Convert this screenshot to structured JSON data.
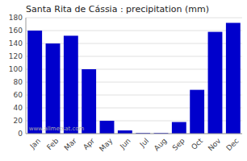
{
  "chart_data": {
    "type": "bar",
    "title": "Santa Rita de Cássia : precipitation (mm)",
    "categories": [
      "Jan",
      "Feb",
      "Mar",
      "Apr",
      "May",
      "Jun",
      "Jul",
      "Aug",
      "Sep",
      "Oct",
      "Nov",
      "Dec"
    ],
    "values": [
      160,
      140,
      152,
      100,
      20,
      5,
      1,
      1,
      18,
      68,
      158,
      172
    ],
    "color": "#0000cc",
    "ylim": [
      0,
      180
    ],
    "yticks": [
      0,
      20,
      40,
      60,
      80,
      100,
      120,
      140,
      160,
      180
    ],
    "grid": true,
    "annotations": [
      "www.allmetsat.com"
    ]
  }
}
